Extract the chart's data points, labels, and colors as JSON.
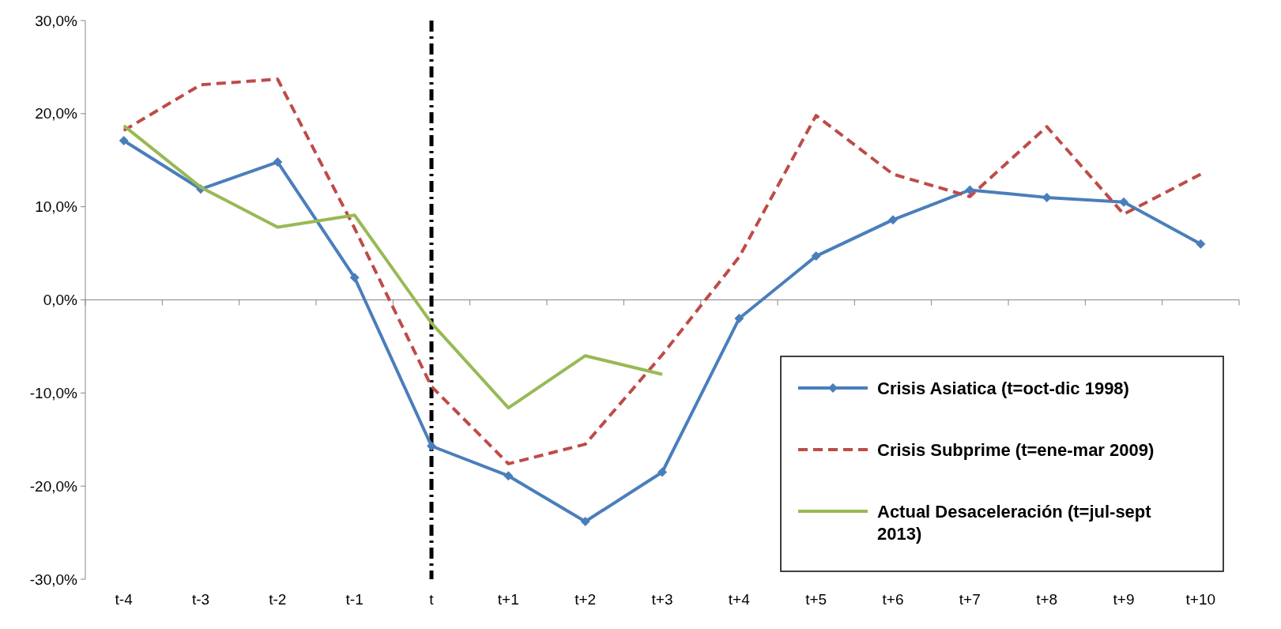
{
  "chart_data": {
    "type": "line",
    "categories": [
      "t-4",
      "t-3",
      "t-2",
      "t-1",
      "t",
      "t+1",
      "t+2",
      "t+3",
      "t+4",
      "t+5",
      "t+6",
      "t+7",
      "t+8",
      "t+9",
      "t+10"
    ],
    "series": [
      {
        "name": "Crisis Asiatica (t=oct-dic 1998)",
        "color": "#4a7ebb",
        "marker": "diamond",
        "line_style": "solid",
        "values": [
          17.1,
          11.9,
          14.8,
          2.4,
          -15.7,
          -18.9,
          -23.8,
          -18.5,
          -2.0,
          4.7,
          8.6,
          11.8,
          11.0,
          10.5,
          6.0
        ]
      },
      {
        "name": "Crisis Subprime (t=ene-mar 2009)",
        "color": "#be4b48",
        "marker": "none",
        "line_style": "dashed",
        "values": [
          18.2,
          23.1,
          23.7,
          7.7,
          -9.3,
          -17.6,
          -15.5,
          -5.9,
          4.6,
          19.8,
          13.5,
          11.1,
          18.6,
          9.2,
          13.5
        ]
      },
      {
        "name": "Actual Desaceleración (t=jul-sept 2013)",
        "color": "#98b954",
        "marker": "none",
        "line_style": "solid",
        "values": [
          18.7,
          12.1,
          7.8,
          9.1,
          -2.5,
          -11.6,
          -6.0,
          -8.0,
          null,
          null,
          null,
          null,
          null,
          null,
          null
        ]
      }
    ],
    "ylim": [
      -30,
      30
    ],
    "yticks": [
      {
        "value": -30,
        "label": "-30,0%"
      },
      {
        "value": -20,
        "label": "-20,0%"
      },
      {
        "value": -10,
        "label": "-10,0%"
      },
      {
        "value": 0,
        "label": "0,0%"
      },
      {
        "value": 10,
        "label": "10,0%"
      },
      {
        "value": 20,
        "label": "20,0%"
      },
      {
        "value": 30,
        "label": "30,0%"
      }
    ],
    "ref_lines": [
      {
        "axis": "x",
        "value": "t",
        "color": "#000000",
        "line_style": "dashdot"
      }
    ],
    "legend": "bottom right",
    "grid": false
  }
}
